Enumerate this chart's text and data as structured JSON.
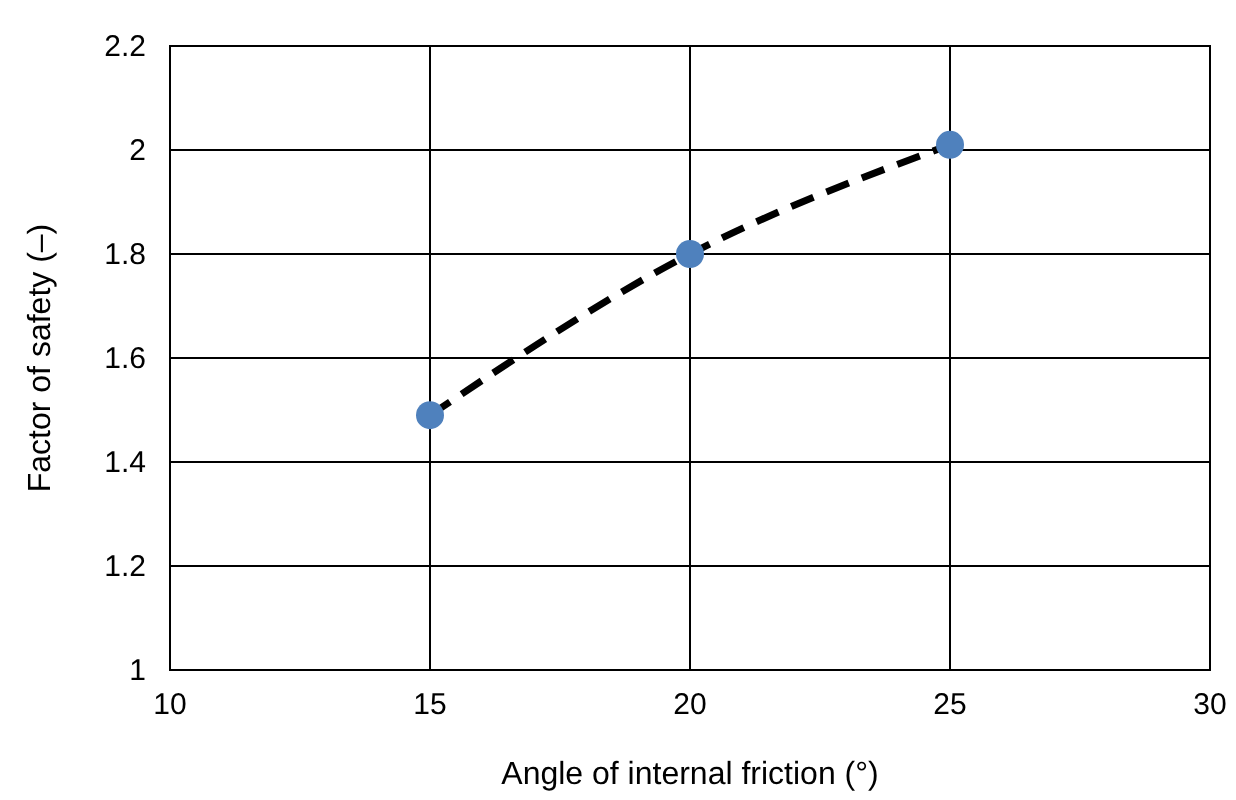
{
  "chart_data": {
    "type": "scatter",
    "xlabel": "Angle of internal friction (°)",
    "ylabel": "Factor of safety (–)",
    "x": [
      15,
      20,
      25
    ],
    "series": [
      {
        "color": "#4f81bd",
        "marker": "circle",
        "values": [
          1.49,
          1.8,
          2.01
        ]
      },
      {
        "type": "line",
        "color": "#000000",
        "marker": "none",
        "values": [
          1.49,
          1.8,
          2.01
        ]
      }
    ],
    "xlim": [
      10,
      30
    ],
    "xticks": [
      10,
      15,
      20,
      25,
      30
    ],
    "ylim": [
      1,
      2.2
    ],
    "yticks": [
      1,
      {
        "value": 1.2,
        "label": "1.2"
      },
      {
        "value": 1.4,
        "label": "1.4"
      },
      {
        "value": 1.6,
        "label": "1.6"
      },
      {
        "value": 1.8,
        "label": "1.8"
      },
      2,
      {
        "value": 2.2,
        "label": "2.2"
      }
    ],
    "grid": true,
    "line_style": "dashed"
  }
}
